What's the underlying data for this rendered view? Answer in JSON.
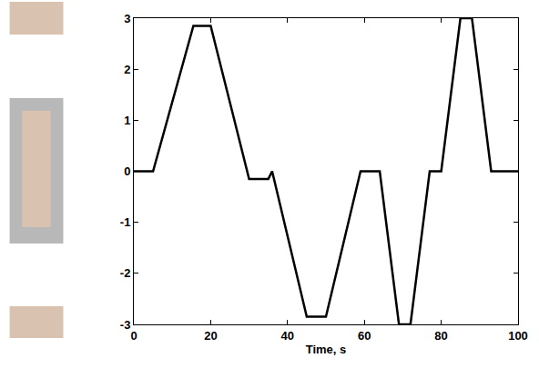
{
  "chart_data": {
    "type": "line",
    "x_label": "Time, s",
    "x": [
      0,
      5,
      15.5,
      20,
      30,
      35,
      36,
      45,
      50,
      59,
      64,
      69,
      72,
      77,
      80,
      85,
      88,
      93,
      100
    ],
    "values": [
      0,
      0,
      2.85,
      2.85,
      -0.15,
      -0.15,
      0,
      -2.85,
      -2.85,
      0,
      0,
      -3,
      -3,
      0,
      0,
      3,
      3,
      0,
      0
    ],
    "color": "#000000",
    "xlim": [
      0,
      100
    ],
    "xticks": [
      0,
      20,
      40,
      60,
      80,
      100
    ],
    "ylim": [
      -3,
      3
    ],
    "yticks": [
      -3,
      -2,
      -1,
      0,
      1,
      2,
      3
    ],
    "grid": false
  }
}
